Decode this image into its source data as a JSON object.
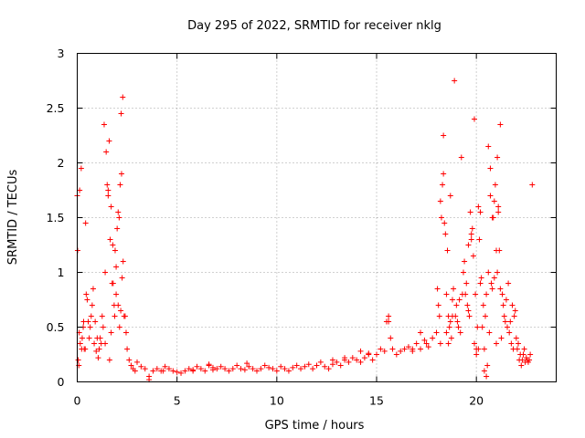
{
  "chart_data": {
    "type": "scatter",
    "title": "Day 295 of 2022, SRMTID for receiver nklg",
    "xlabel": "GPS time / hours",
    "ylabel": "SRMTID / TECUs",
    "xlim": [
      0,
      24
    ],
    "ylim": [
      0,
      3
    ],
    "xticks": [
      0,
      5,
      10,
      15,
      20
    ],
    "xtick_labels": [
      "0",
      "5",
      "10",
      "15",
      "20"
    ],
    "yticks": [
      0,
      0.5,
      1,
      1.5,
      2,
      2.5,
      3
    ],
    "ytick_labels": [
      "0",
      "0.5",
      "1",
      "1.5",
      "2",
      "2.5",
      "3"
    ],
    "grid": true,
    "marker": "+",
    "color": "#ff0000",
    "series": [
      {
        "name": "SRMTID",
        "x": [
          0.0,
          0.1,
          0.2,
          0.3,
          0.4,
          0.5,
          0.6,
          0.7,
          0.8,
          0.9,
          1.0,
          1.1,
          1.2,
          1.3,
          1.4,
          1.5,
          1.6,
          1.7,
          1.8,
          1.9,
          2.0,
          2.1,
          2.2,
          2.3,
          2.4,
          2.5,
          2.6,
          2.7,
          2.8,
          2.9,
          3.0,
          3.2,
          3.4,
          3.6,
          3.8,
          4.0,
          4.2,
          4.4,
          4.6,
          4.8,
          5.0,
          5.2,
          5.4,
          5.6,
          5.8,
          6.0,
          6.2,
          6.4,
          6.6,
          6.8,
          7.0,
          7.2,
          7.4,
          7.6,
          7.8,
          8.0,
          8.2,
          8.4,
          8.6,
          8.8,
          9.0,
          9.2,
          9.4,
          9.6,
          9.8,
          10.0,
          10.2,
          10.4,
          10.6,
          10.8,
          11.0,
          11.2,
          11.4,
          11.6,
          11.8,
          12.0,
          12.2,
          12.4,
          12.6,
          12.8,
          13.0,
          13.2,
          13.4,
          13.6,
          13.8,
          14.0,
          14.2,
          14.4,
          14.6,
          14.8,
          15.0,
          15.2,
          15.4,
          15.6,
          15.8,
          16.0,
          16.2,
          16.4,
          16.6,
          16.8,
          17.0,
          17.2,
          17.4,
          17.6,
          17.8,
          18.0,
          18.1,
          18.2,
          18.3,
          18.4,
          18.5,
          18.6,
          18.7,
          18.8,
          18.9,
          19.0,
          19.1,
          19.2,
          19.3,
          19.4,
          19.5,
          19.6,
          19.7,
          19.8,
          19.9,
          20.0,
          20.1,
          20.2,
          20.3,
          20.4,
          20.5,
          20.6,
          20.7,
          20.8,
          20.9,
          21.0,
          21.1,
          21.2,
          21.3,
          21.4,
          21.5,
          21.6,
          21.7,
          21.8,
          21.9,
          22.0,
          22.1,
          22.2,
          22.3,
          22.4,
          22.5,
          22.6,
          22.7,
          22.8,
          0.05,
          0.15,
          0.25,
          0.35,
          0.45,
          0.55,
          0.65,
          0.75,
          0.85,
          0.95,
          1.05,
          1.15,
          1.25,
          1.35,
          1.45,
          1.55,
          1.65,
          1.75,
          1.85,
          1.95,
          2.05,
          2.15,
          2.25,
          2.35,
          2.45,
          0.02,
          0.08,
          0.12,
          0.22,
          0.32,
          0.42,
          1.4,
          1.55,
          1.62,
          1.7,
          1.78,
          1.88,
          1.95,
          2.05,
          2.12,
          2.18,
          2.22,
          2.28,
          18.05,
          18.15,
          18.25,
          18.35,
          18.45,
          18.55,
          18.65,
          18.75,
          18.85,
          18.95,
          19.05,
          19.15,
          19.25,
          19.35,
          19.45,
          19.55,
          19.65,
          19.75,
          19.85,
          19.95,
          20.05,
          20.15,
          20.25,
          20.35,
          20.45,
          20.55,
          20.65,
          20.75,
          20.85,
          20.95,
          21.05,
          21.15,
          21.25,
          21.35,
          21.45,
          21.55,
          21.65,
          21.75,
          21.85,
          21.95,
          22.05,
          22.15,
          22.25,
          22.35,
          22.45,
          22.55,
          22.65,
          18.2,
          18.35,
          18.5,
          18.6,
          18.7,
          18.8,
          19.6,
          19.75,
          19.9,
          20.0,
          20.1,
          20.2,
          20.4,
          20.5,
          20.6,
          20.7,
          20.8,
          20.9,
          21.0,
          21.05,
          21.1,
          21.2,
          15.5,
          15.6,
          15.7,
          16.8,
          17.2,
          17.5,
          3.6,
          4.3,
          5.8,
          6.6,
          6.8,
          8.5,
          12.8,
          13.4,
          14.2,
          14.6
        ],
        "y": [
          1.7,
          0.45,
          1.95,
          0.5,
          0.3,
          0.75,
          0.4,
          0.6,
          0.85,
          0.55,
          0.4,
          0.3,
          0.35,
          0.5,
          1.0,
          1.8,
          2.2,
          1.6,
          0.9,
          1.2,
          1.4,
          1.5,
          2.45,
          1.1,
          0.6,
          0.3,
          0.2,
          0.15,
          0.12,
          0.1,
          0.18,
          0.14,
          0.12,
          0.05,
          0.1,
          0.12,
          0.1,
          0.14,
          0.12,
          0.1,
          0.09,
          0.08,
          0.1,
          0.12,
          0.1,
          0.14,
          0.12,
          0.1,
          0.15,
          0.11,
          0.12,
          0.14,
          0.12,
          0.1,
          0.12,
          0.15,
          0.12,
          0.11,
          0.14,
          0.12,
          0.1,
          0.12,
          0.15,
          0.13,
          0.12,
          0.1,
          0.14,
          0.12,
          0.1,
          0.13,
          0.15,
          0.12,
          0.14,
          0.16,
          0.12,
          0.15,
          0.18,
          0.14,
          0.12,
          0.16,
          0.18,
          0.15,
          0.2,
          0.18,
          0.22,
          0.2,
          0.18,
          0.22,
          0.25,
          0.2,
          0.25,
          0.3,
          0.28,
          0.55,
          0.3,
          0.25,
          0.28,
          0.3,
          0.32,
          0.28,
          0.35,
          0.3,
          0.38,
          0.32,
          0.4,
          0.45,
          0.7,
          1.65,
          1.8,
          1.45,
          0.8,
          0.6,
          0.55,
          0.6,
          2.75,
          0.7,
          0.5,
          0.45,
          0.8,
          1.1,
          0.9,
          0.65,
          1.55,
          1.4,
          0.35,
          0.25,
          1.6,
          0.9,
          0.5,
          0.3,
          0.8,
          1.0,
          1.7,
          1.5,
          1.65,
          1.2,
          1.55,
          0.85,
          0.8,
          0.6,
          0.75,
          0.9,
          0.55,
          0.7,
          0.6,
          0.4,
          0.35,
          0.25,
          0.2,
          0.3,
          0.22,
          0.18,
          0.25,
          1.8,
          0.2,
          0.35,
          0.4,
          0.3,
          0.8,
          0.55,
          0.5,
          0.7,
          0.35,
          0.28,
          0.22,
          0.4,
          0.6,
          2.35,
          2.1,
          1.7,
          1.3,
          0.9,
          0.7,
          0.8,
          1.55,
          1.8,
          0.95,
          0.6,
          0.45,
          1.2,
          0.15,
          1.75,
          0.3,
          0.55,
          1.45,
          0.35,
          1.75,
          0.2,
          0.45,
          1.25,
          0.6,
          1.05,
          0.7,
          0.5,
          0.65,
          1.9,
          2.6,
          0.85,
          0.6,
          1.5,
          1.9,
          1.35,
          1.2,
          0.5,
          0.4,
          0.85,
          0.6,
          0.55,
          0.75,
          2.05,
          1.0,
          0.8,
          0.7,
          0.6,
          1.35,
          1.15,
          0.8,
          0.5,
          1.3,
          0.95,
          0.7,
          0.6,
          0.15,
          0.45,
          0.9,
          1.5,
          1.8,
          1.0,
          1.2,
          0.4,
          0.7,
          0.55,
          0.5,
          0.45,
          0.35,
          0.3,
          0.65,
          0.3,
          0.2,
          0.15,
          0.25,
          0.18,
          0.2,
          0.2,
          0.35,
          2.25,
          0.45,
          0.35,
          1.7,
          0.75,
          1.25,
          1.3,
          2.4,
          0.3,
          0.3,
          1.55,
          0.1,
          0.05,
          2.15,
          1.95,
          0.85,
          0.95,
          0.35,
          2.05,
          1.6,
          2.35,
          0.55,
          0.6,
          0.4,
          0.3,
          0.45,
          0.35,
          0.02,
          0.1,
          0.11,
          0.16,
          0.13,
          0.17,
          0.2,
          0.22,
          0.28,
          0.26
        ]
      }
    ]
  }
}
